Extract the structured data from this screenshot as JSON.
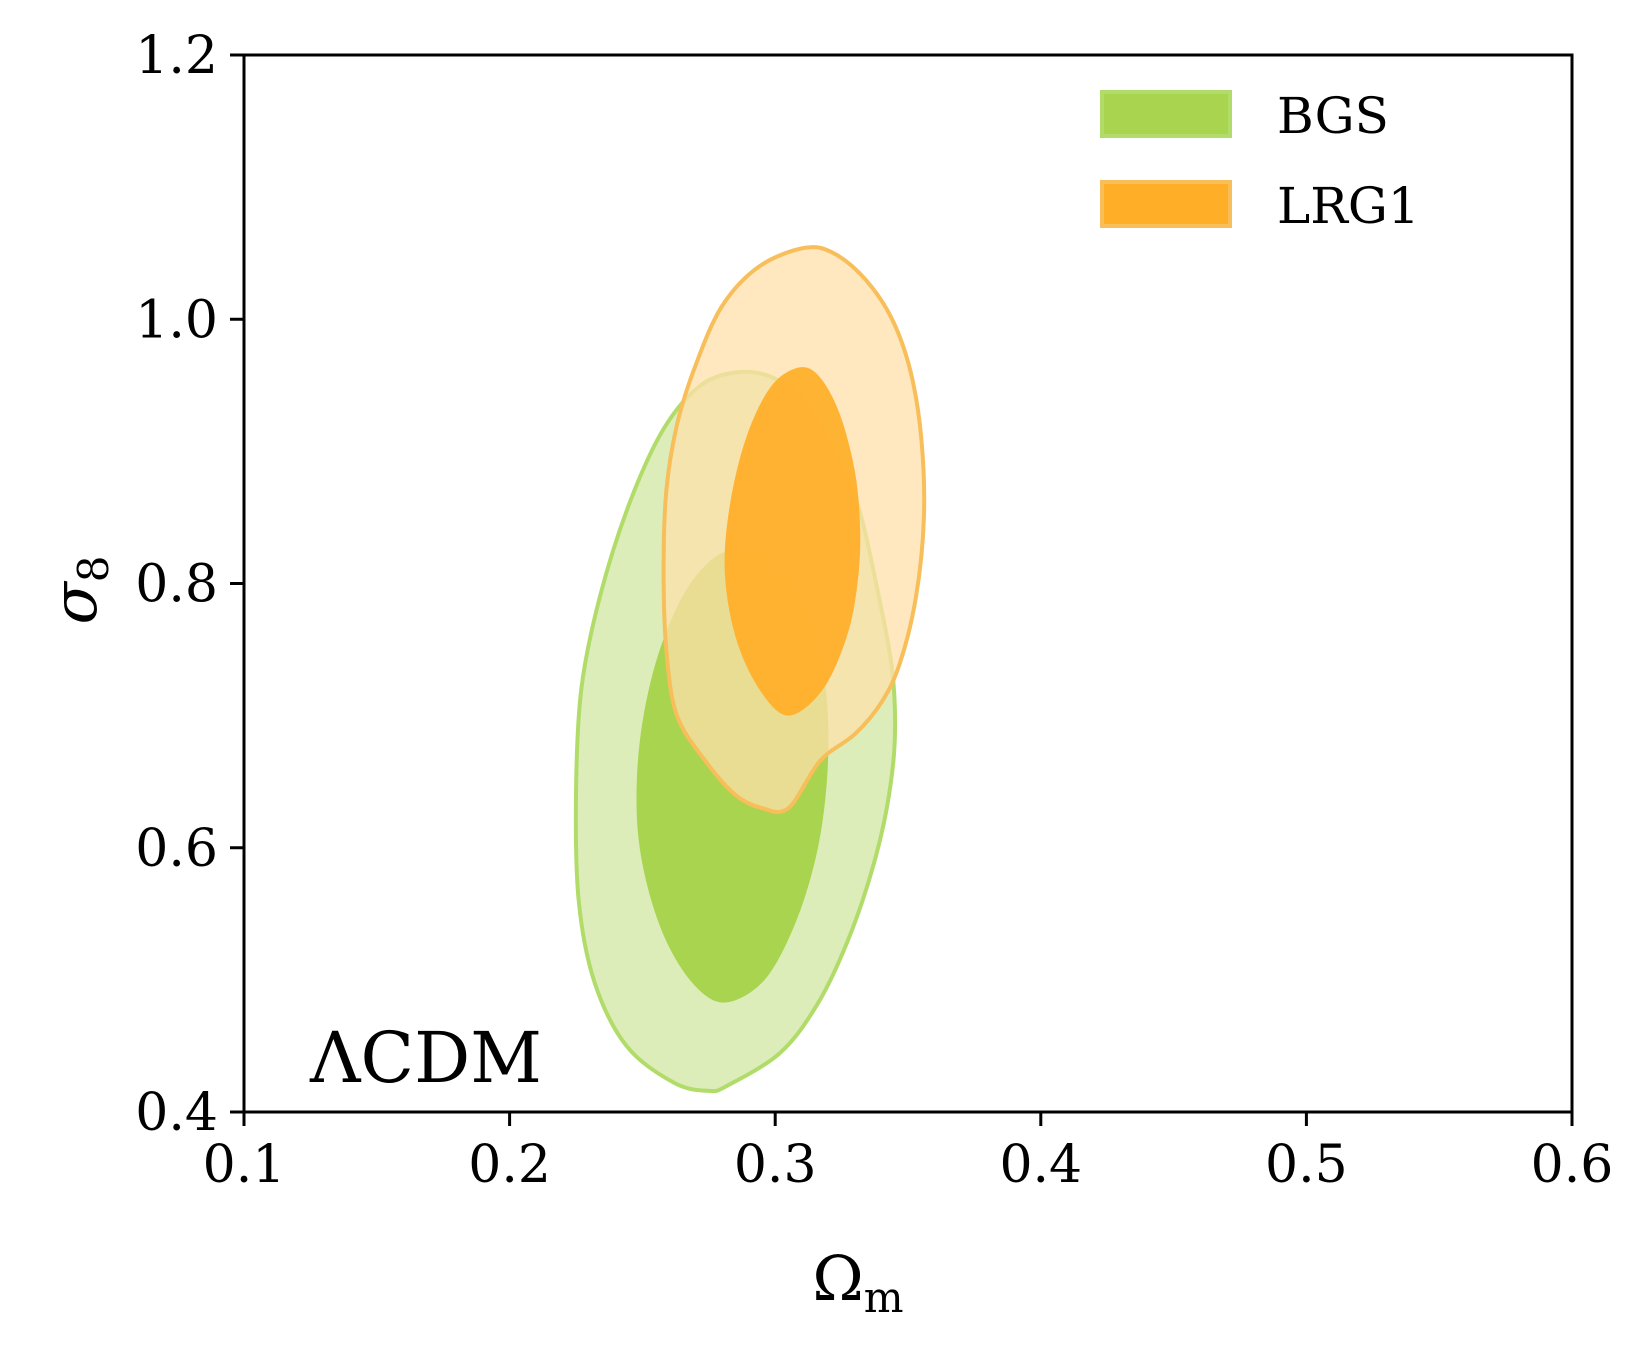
{
  "chart_data": {
    "type": "contour",
    "title": "",
    "xlabel": "Ω",
    "xlabel_sub": "m",
    "ylabel": "σ",
    "ylabel_sub": "8",
    "xlim": [
      0.1,
      0.6
    ],
    "ylim": [
      0.4,
      1.2
    ],
    "xticks": [
      0.1,
      0.2,
      0.3,
      0.4,
      0.5,
      0.6
    ],
    "yticks": [
      0.4,
      0.6,
      0.8,
      1.0,
      1.2
    ],
    "xtick_labels": [
      "0.1",
      "0.2",
      "0.3",
      "0.4",
      "0.5",
      "0.6"
    ],
    "ytick_labels": [
      "0.4",
      "0.6",
      "0.8",
      "1.0",
      "1.2"
    ],
    "annotation": "ΛCDM",
    "legend_position": "top-right",
    "series": [
      {
        "name": "BGS",
        "color": "#a8d44f",
        "outer_color": "#dcedba",
        "edge_color": "#b2dc6a",
        "contour_2sigma": [
          [
            0.2865,
            0.96
          ],
          [
            0.3,
            0.955
          ],
          [
            0.312,
            0.935
          ],
          [
            0.322,
            0.9
          ],
          [
            0.331,
            0.86
          ],
          [
            0.338,
            0.8
          ],
          [
            0.344,
            0.735
          ],
          [
            0.345,
            0.68
          ],
          [
            0.342,
            0.63
          ],
          [
            0.336,
            0.58
          ],
          [
            0.327,
            0.528
          ],
          [
            0.316,
            0.482
          ],
          [
            0.302,
            0.445
          ],
          [
            0.282,
            0.42
          ],
          [
            0.275,
            0.416
          ],
          [
            0.262,
            0.422
          ],
          [
            0.244,
            0.45
          ],
          [
            0.232,
            0.498
          ],
          [
            0.226,
            0.56
          ],
          [
            0.225,
            0.64
          ],
          [
            0.227,
            0.72
          ],
          [
            0.234,
            0.79
          ],
          [
            0.245,
            0.86
          ],
          [
            0.258,
            0.917
          ],
          [
            0.272,
            0.95
          ]
        ],
        "contour_1sigma": [
          [
            0.286,
            0.826
          ],
          [
            0.296,
            0.82
          ],
          [
            0.306,
            0.8
          ],
          [
            0.313,
            0.77
          ],
          [
            0.318,
            0.735
          ],
          [
            0.32,
            0.69
          ],
          [
            0.319,
            0.64
          ],
          [
            0.315,
            0.59
          ],
          [
            0.307,
            0.54
          ],
          [
            0.296,
            0.5
          ],
          [
            0.282,
            0.483
          ],
          [
            0.271,
            0.493
          ],
          [
            0.26,
            0.525
          ],
          [
            0.252,
            0.57
          ],
          [
            0.248,
            0.62
          ],
          [
            0.249,
            0.68
          ],
          [
            0.255,
            0.74
          ],
          [
            0.265,
            0.79
          ],
          [
            0.276,
            0.818
          ]
        ]
      },
      {
        "name": "LRG1",
        "color": "#ffae28",
        "outer_color": "#ffe0aa",
        "edge_color": "#f7be5a",
        "contour_2sigma": [
          [
            0.311,
            1.054
          ],
          [
            0.322,
            1.05
          ],
          [
            0.334,
            1.03
          ],
          [
            0.344,
            1.0
          ],
          [
            0.351,
            0.96
          ],
          [
            0.355,
            0.91
          ],
          [
            0.356,
            0.85
          ],
          [
            0.353,
            0.79
          ],
          [
            0.347,
            0.74
          ],
          [
            0.34,
            0.71
          ],
          [
            0.33,
            0.686
          ],
          [
            0.317,
            0.666
          ],
          [
            0.305,
            0.63
          ],
          [
            0.295,
            0.63
          ],
          [
            0.285,
            0.64
          ],
          [
            0.274,
            0.665
          ],
          [
            0.263,
            0.7
          ],
          [
            0.259,
            0.75
          ],
          [
            0.258,
            0.81
          ],
          [
            0.259,
            0.87
          ],
          [
            0.263,
            0.92
          ],
          [
            0.27,
            0.965
          ],
          [
            0.28,
            1.01
          ],
          [
            0.294,
            1.04
          ]
        ],
        "contour_1sigma": [
          [
            0.308,
            0.963
          ],
          [
            0.316,
            0.958
          ],
          [
            0.324,
            0.93
          ],
          [
            0.33,
            0.885
          ],
          [
            0.332,
            0.84
          ],
          [
            0.331,
            0.8
          ],
          [
            0.327,
            0.76
          ],
          [
            0.318,
            0.72
          ],
          [
            0.305,
            0.7
          ],
          [
            0.294,
            0.72
          ],
          [
            0.285,
            0.76
          ],
          [
            0.281,
            0.81
          ],
          [
            0.283,
            0.86
          ],
          [
            0.289,
            0.91
          ],
          [
            0.298,
            0.948
          ]
        ]
      }
    ]
  }
}
